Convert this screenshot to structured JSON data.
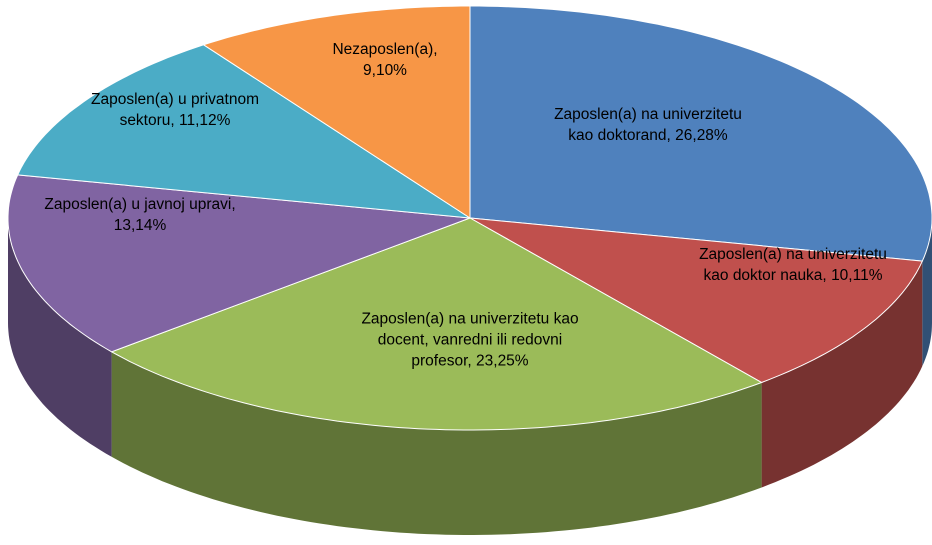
{
  "chart_data": {
    "type": "pie3d",
    "categories": [
      "Zaposlen(a) na univerzitetu kao doktorand,",
      "Zaposlen(a) na univerzitetu kao doktor nauka,",
      "Zaposlen(a) na univerzitetu kao docent, vanredni ili redovni profesor,",
      "Zaposlen(a) u javnoj upravi,",
      "Zaposlen(a) u privatnom sektoru,",
      "Nezaposlen(a),"
    ],
    "values": [
      26,
      10,
      23,
      13,
      11,
      9
    ],
    "value_labels": [
      "26,28%",
      "10,11%",
      "23,25%",
      "13,14%",
      "11,12%",
      "9,10%"
    ],
    "colors": [
      "#4f81bd",
      "#c0504d",
      "#9bbb59",
      "#8064a2",
      "#4bacc6",
      "#f79646"
    ]
  }
}
